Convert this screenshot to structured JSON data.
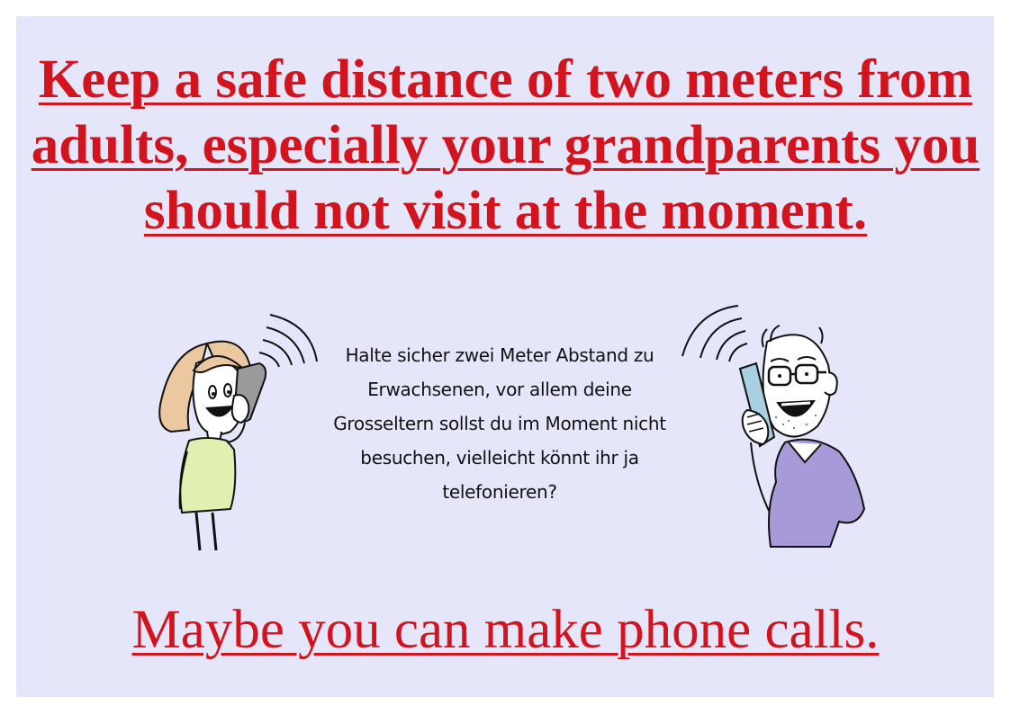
{
  "poster": {
    "headline": "Keep a safe distance of two meters from adults, especially your grandparents you should not visit at the moment.",
    "german_text": "Halte sicher zwei Meter Abstand zu Erwachsenen, vor allem deine Grosseltern sollst du im Moment nicht besuchen, vielleicht könnt ihr ja telefonieren?",
    "footer": "Maybe you can make phone calls.",
    "background_color": "#e6e6fa",
    "accent_color": "#d2141e"
  },
  "illustrations": {
    "left": "girl-on-phone-icon",
    "right": "man-on-phone-icon"
  }
}
